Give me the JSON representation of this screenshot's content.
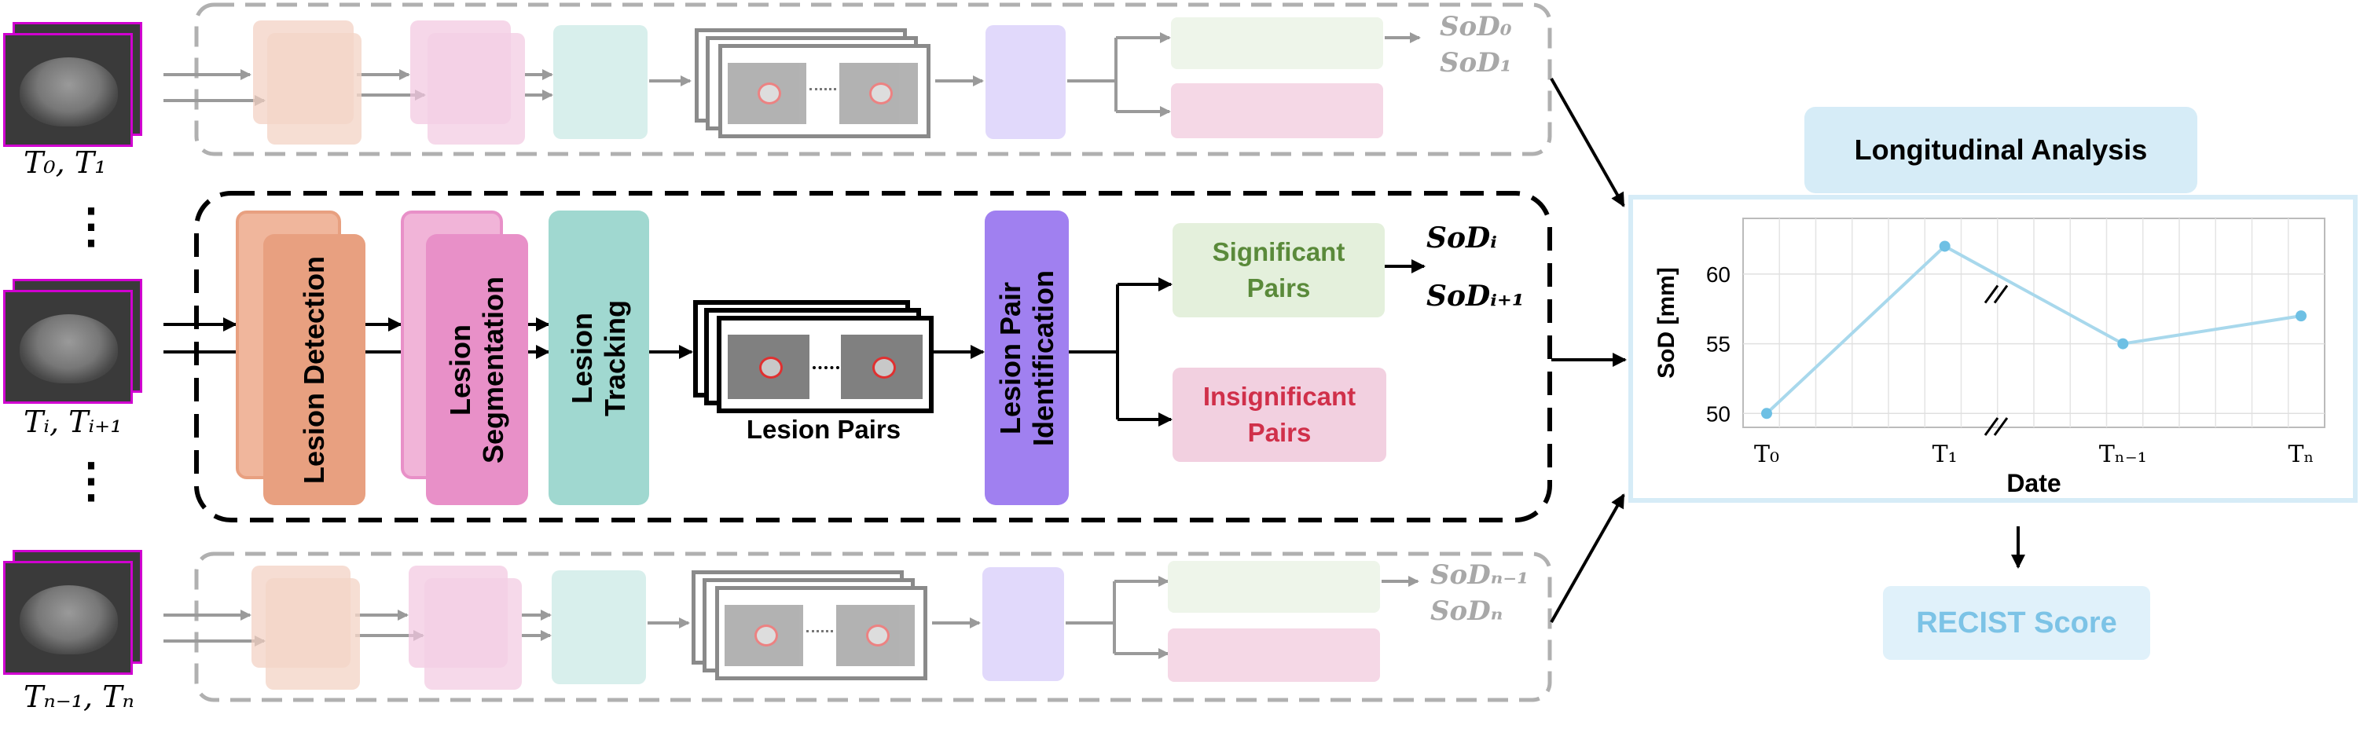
{
  "inputs": {
    "top_label": "T₀, T₁",
    "mid_label": "Tᵢ, Tᵢ₊₁",
    "bottom_label": "Tₙ₋₁, Tₙ",
    "ellipsis_top": "⋮",
    "ellipsis_bottom": "⋮"
  },
  "pipeline": {
    "detection": "Lesion Detection",
    "segmentation": "Lesion Segmentation",
    "tracking": "Lesion Tracking",
    "pairs": "Lesion Pairs",
    "identification": "Lesion Pair Identification",
    "significant": "Significant Pairs",
    "insignificant": "Insignificant Pairs",
    "sod_i": "SoDᵢ",
    "sod_i1": "SoDᵢ₊₁"
  },
  "ghost_top": {
    "sod_a": "SoD₀",
    "sod_b": "SoD₁"
  },
  "ghost_bottom": {
    "sod_a": "SoDₙ₋₁",
    "sod_b": "SoDₙ"
  },
  "analysis": {
    "title": "Longitudinal Analysis",
    "result": "RECIST Score"
  },
  "colors": {
    "detection": "#e8a080",
    "segmentation": "#e890c8",
    "tracking": "#a0d8d0",
    "identification": "#a080f0",
    "significant_bg": "#e4f0dc",
    "significant_text": "#5a8a3a",
    "insignificant_bg": "#f2d0e0",
    "insignificant_text": "#d0304a",
    "analysis_bg": "#d6ecf7",
    "line": "#a8d8ec",
    "point": "#6ec0e4"
  },
  "chart_data": {
    "type": "line",
    "categories": [
      "T0",
      "T1",
      "Tn-1",
      "Tn"
    ],
    "category_labels": [
      "T₀",
      "T₁",
      "Tₙ₋₁",
      "Tₙ"
    ],
    "values": [
      50,
      62,
      55,
      57
    ],
    "xlabel": "Date",
    "ylabel": "SoD [mm]",
    "yticks": [
      50,
      55,
      60
    ],
    "ylim": [
      49,
      64
    ],
    "axis_break": "between T1 and Tn-1",
    "grid": true
  }
}
